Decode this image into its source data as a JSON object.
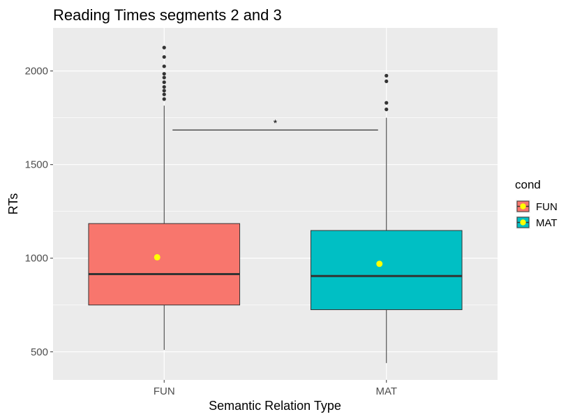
{
  "chart_data": {
    "type": "boxplot",
    "title": "Reading Times segments 2 and 3",
    "xlabel": "Semantic Relation Type",
    "ylabel": "RTs",
    "categories": [
      "FUN",
      "MAT"
    ],
    "ylim": [
      350,
      2230
    ],
    "yticks": [
      500,
      1000,
      1500,
      2000
    ],
    "grid": true,
    "legend": {
      "title": "cond",
      "position": "right",
      "entries": [
        "FUN",
        "MAT"
      ]
    },
    "series": [
      {
        "name": "FUN",
        "color": "#F8766D",
        "whisker_low": 510,
        "q1": 750,
        "median": 915,
        "q3": 1185,
        "whisker_high": 1815,
        "mean": 1005,
        "outliers": [
          1850,
          1875,
          1895,
          1915,
          1940,
          1965,
          1985,
          2025,
          2075,
          2125
        ]
      },
      {
        "name": "MAT",
        "color": "#00BFC4",
        "whisker_low": 440,
        "q1": 725,
        "median": 905,
        "q3": 1148,
        "whisker_high": 1750,
        "mean": 970,
        "outliers": [
          1795,
          1830,
          1945,
          1975
        ]
      }
    ],
    "mean_marker_color": "#FFFF00",
    "annotation": {
      "text": "*",
      "from": "FUN",
      "to": "MAT",
      "y": 1685
    },
    "colors": {
      "panel": "#EBEBEB",
      "grid": "#FFFFFF",
      "axis_text": "#4D4D4D",
      "box_line": "#333333"
    }
  }
}
